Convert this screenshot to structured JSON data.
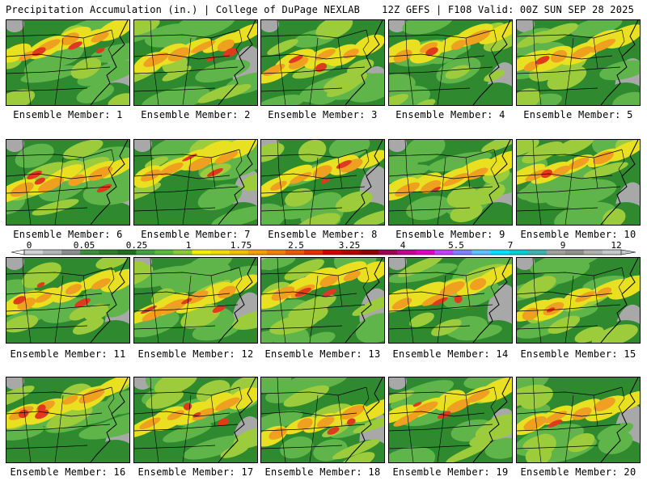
{
  "header": {
    "title": "Precipitation Accumulation (in.) | College of DuPage NEXLAB",
    "run_info": "12Z GEFS | F108 Valid: 00Z SUN SEP 28 2025"
  },
  "colorbar": {
    "tick_labels": [
      "0",
      "0.05",
      "0.25",
      "1",
      "1.75",
      "2.5",
      "3.25",
      "4",
      "5.5",
      "7",
      "9",
      "12"
    ],
    "colors": [
      "#d2d2d2",
      "#b4b4b4",
      "#8c8c8c",
      "#3f8c3f",
      "#2e7d2e",
      "#1f6e1f",
      "#3fa03f",
      "#5ab83c",
      "#8cc83c",
      "#f0f000",
      "#f0dc00",
      "#f0c000",
      "#f0a000",
      "#f08000",
      "#e85a00",
      "#e03000",
      "#d00000",
      "#b00000",
      "#900000",
      "#a00050",
      "#c00090",
      "#e000c0",
      "#c040ff",
      "#8080ff",
      "#60c0ff",
      "#00e0ff",
      "#00d0d0",
      "#40b0b0",
      "#a0a0a0",
      "#909090",
      "#b0b0b0",
      "#c8c8c8"
    ]
  },
  "map_colors": {
    "base": "#2f8a2f",
    "light_green": "#5fb54a",
    "yellow_green": "#9ccc3c",
    "yellow": "#e8e020",
    "orange": "#f0a020",
    "red": "#e03a1e",
    "gray": "#a8a8a8",
    "border": "#000000"
  },
  "members": [
    {
      "label": "Ensemble Member: 1"
    },
    {
      "label": "Ensemble Member: 2"
    },
    {
      "label": "Ensemble Member: 3"
    },
    {
      "label": "Ensemble Member: 4"
    },
    {
      "label": "Ensemble Member: 5"
    },
    {
      "label": "Ensemble Member: 6"
    },
    {
      "label": "Ensemble Member: 7"
    },
    {
      "label": "Ensemble Member: 8"
    },
    {
      "label": "Ensemble Member: 9"
    },
    {
      "label": "Ensemble Member: 10"
    },
    {
      "label": "Ensemble Member: 11"
    },
    {
      "label": "Ensemble Member: 12"
    },
    {
      "label": "Ensemble Member: 13"
    },
    {
      "label": "Ensemble Member: 14"
    },
    {
      "label": "Ensemble Member: 15"
    },
    {
      "label": "Ensemble Member: 16"
    },
    {
      "label": "Ensemble Member: 17"
    },
    {
      "label": "Ensemble Member: 18"
    },
    {
      "label": "Ensemble Member: 19"
    },
    {
      "label": "Ensemble Member: 20"
    }
  ]
}
